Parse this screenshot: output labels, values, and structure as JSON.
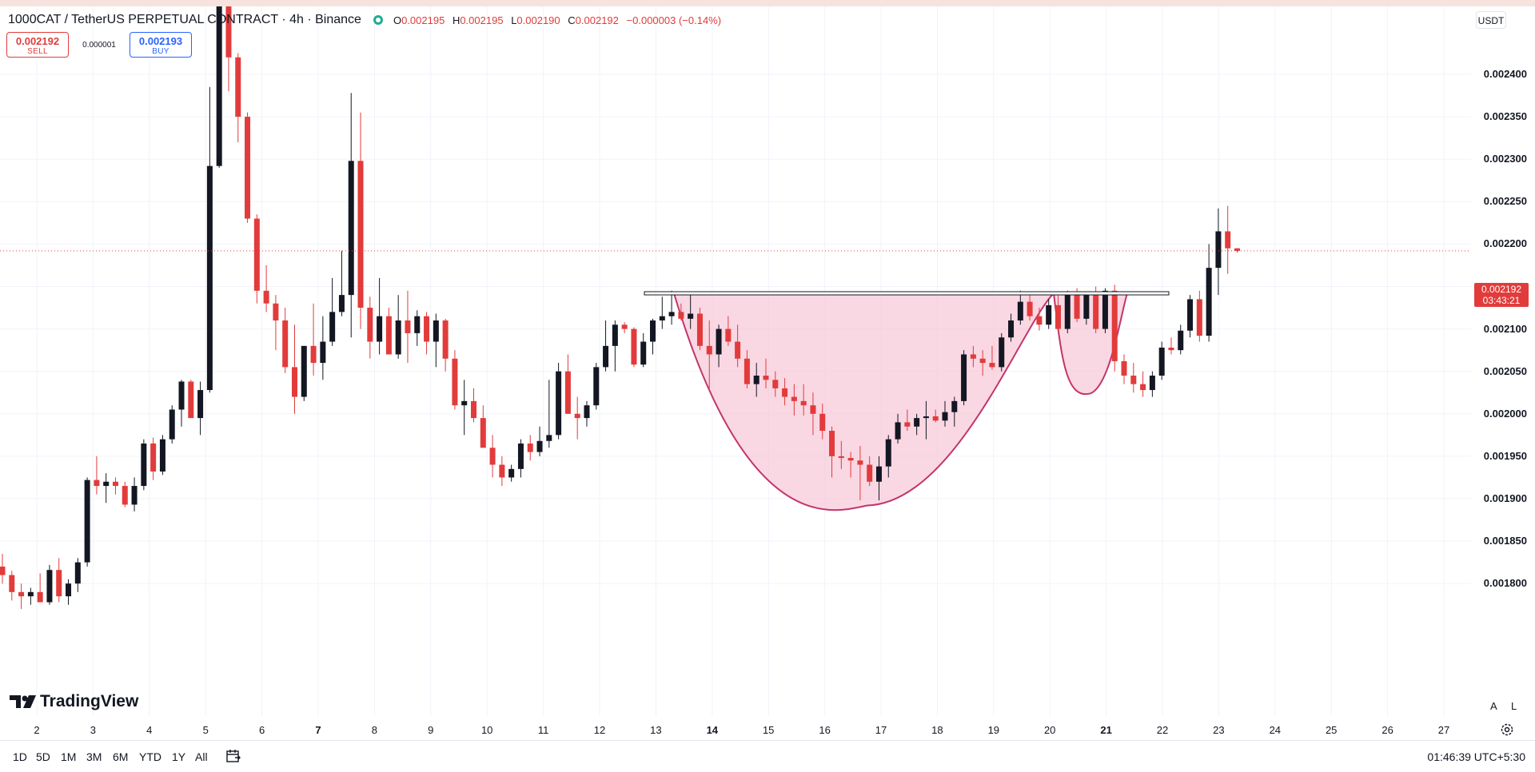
{
  "header": {
    "symbol_title": "1000CAT / TetherUS PERPETUAL CONTRACT · 4h · Binance",
    "ohlc": [
      {
        "label": "O",
        "value": "0.002195"
      },
      {
        "label": "H",
        "value": "0.002195"
      },
      {
        "label": "L",
        "value": "0.002190"
      },
      {
        "label": "C",
        "value": "0.002192"
      }
    ],
    "change": "−0.000003 (−0.14%)"
  },
  "trade": {
    "sell_price": "0.002192",
    "sell_label": "SELL",
    "spread": "0.000001",
    "buy_price": "0.002193",
    "buy_label": "BUY"
  },
  "currency": "USDT",
  "last_price_tag": {
    "price": "0.002192",
    "countdown": "03:43:21"
  },
  "colors": {
    "up": "#131722",
    "down": "#e23b3b",
    "pattern_fill": "#f7c6d7",
    "pattern_stroke": "#c2356b",
    "accent": "#2962ff"
  },
  "icons": [
    "tradingview-logo-icon",
    "calendar-icon",
    "settings-gear-icon",
    "status-dot-icon"
  ],
  "logo_text": "TradingView",
  "bottom_bar": {
    "ranges": [
      "1D",
      "5D",
      "1M",
      "3M",
      "6M",
      "YTD",
      "1Y",
      "All"
    ],
    "clock": "01:46:39 UTC+5:30"
  },
  "scale_buttons": {
    "auto": "A",
    "log": "L"
  },
  "chart_data": {
    "type": "candlestick",
    "interval": "4h",
    "price_ticks": [
      "0.002400",
      "0.002350",
      "0.002300",
      "0.002250",
      "0.002200",
      "0.002150",
      "0.002100",
      "0.002050",
      "0.002000",
      "0.001950",
      "0.001900",
      "0.001850",
      "0.001800"
    ],
    "time_ticks": [
      {
        "label": "2",
        "bold": false
      },
      {
        "label": "3",
        "bold": false
      },
      {
        "label": "4",
        "bold": false
      },
      {
        "label": "5",
        "bold": false
      },
      {
        "label": "6",
        "bold": false
      },
      {
        "label": "7",
        "bold": true
      },
      {
        "label": "8",
        "bold": false
      },
      {
        "label": "9",
        "bold": false
      },
      {
        "label": "10",
        "bold": false
      },
      {
        "label": "11",
        "bold": false
      },
      {
        "label": "12",
        "bold": false
      },
      {
        "label": "13",
        "bold": false
      },
      {
        "label": "14",
        "bold": true
      },
      {
        "label": "15",
        "bold": false
      },
      {
        "label": "16",
        "bold": false
      },
      {
        "label": "17",
        "bold": false
      },
      {
        "label": "18",
        "bold": false
      },
      {
        "label": "19",
        "bold": false
      },
      {
        "label": "20",
        "bold": false
      },
      {
        "label": "21",
        "bold": true
      },
      {
        "label": "22",
        "bold": false
      },
      {
        "label": "23",
        "bold": false
      },
      {
        "label": "24",
        "bold": false
      },
      {
        "label": "25",
        "bold": false
      },
      {
        "label": "26",
        "bold": false
      },
      {
        "label": "27",
        "bold": false
      }
    ],
    "annotations": {
      "cup_and_handle": {
        "rim_price": 0.002142,
        "cup_bottom_price": 0.001892,
        "handle_bottom_price": 0.002024
      }
    },
    "candles": [
      [
        0.00182,
        0.001835,
        0.0018,
        0.00181
      ],
      [
        0.00181,
        0.001815,
        0.00178,
        0.00179
      ],
      [
        0.00179,
        0.0018,
        0.00177,
        0.001785
      ],
      [
        0.001785,
        0.001795,
        0.001775,
        0.00179
      ],
      [
        0.00179,
        0.001812,
        0.00178,
        0.001778
      ],
      [
        0.001778,
        0.001822,
        0.001775,
        0.001816
      ],
      [
        0.001816,
        0.00183,
        0.001778,
        0.001785
      ],
      [
        0.001785,
        0.001805,
        0.001775,
        0.0018
      ],
      [
        0.0018,
        0.00183,
        0.00179,
        0.001825
      ],
      [
        0.001825,
        0.001925,
        0.00182,
        0.001922
      ],
      [
        0.001922,
        0.00195,
        0.001905,
        0.001915
      ],
      [
        0.001915,
        0.00193,
        0.001895,
        0.00192
      ],
      [
        0.00192,
        0.001925,
        0.001905,
        0.001915
      ],
      [
        0.001915,
        0.00192,
        0.00189,
        0.001893
      ],
      [
        0.001893,
        0.001925,
        0.001885,
        0.001915
      ],
      [
        0.001915,
        0.00197,
        0.00191,
        0.001965
      ],
      [
        0.001965,
        0.001972,
        0.001922,
        0.001932
      ],
      [
        0.001932,
        0.001975,
        0.001928,
        0.00197
      ],
      [
        0.00197,
        0.00201,
        0.001965,
        0.002005
      ],
      [
        0.002005,
        0.00204,
        0.001985,
        0.002038
      ],
      [
        0.002038,
        0.00204,
        0.002,
        0.001995
      ],
      [
        0.001995,
        0.002038,
        0.001975,
        0.002028
      ],
      [
        0.002028,
        0.002385,
        0.002025,
        0.002292
      ],
      [
        0.002292,
        0.00249,
        0.00229,
        0.00248
      ],
      [
        0.00248,
        0.002488,
        0.00238,
        0.00242
      ],
      [
        0.00242,
        0.002425,
        0.00232,
        0.00235
      ],
      [
        0.00235,
        0.002355,
        0.002225,
        0.00223
      ],
      [
        0.00223,
        0.002235,
        0.00213,
        0.002145
      ],
      [
        0.002145,
        0.002175,
        0.00212,
        0.00213
      ],
      [
        0.00213,
        0.00214,
        0.002075,
        0.00211
      ],
      [
        0.00211,
        0.002125,
        0.002048,
        0.002055
      ],
      [
        0.002055,
        0.002105,
        0.002,
        0.00202
      ],
      [
        0.00202,
        0.00208,
        0.002015,
        0.00208
      ],
      [
        0.00208,
        0.00213,
        0.002045,
        0.00206
      ],
      [
        0.00206,
        0.002115,
        0.00204,
        0.002085
      ],
      [
        0.002085,
        0.00216,
        0.00208,
        0.00212
      ],
      [
        0.00212,
        0.002192,
        0.002115,
        0.00214
      ],
      [
        0.00214,
        0.002378,
        0.00209,
        0.002298
      ],
      [
        0.002298,
        0.002355,
        0.0021,
        0.002125
      ],
      [
        0.002125,
        0.002138,
        0.002065,
        0.002085
      ],
      [
        0.002085,
        0.00216,
        0.00207,
        0.002115
      ],
      [
        0.002115,
        0.002125,
        0.00207,
        0.00207
      ],
      [
        0.00207,
        0.00214,
        0.002065,
        0.00211
      ],
      [
        0.00211,
        0.002145,
        0.00206,
        0.002095
      ],
      [
        0.002095,
        0.002122,
        0.00208,
        0.002115
      ],
      [
        0.002115,
        0.00212,
        0.00207,
        0.002085
      ],
      [
        0.002085,
        0.002118,
        0.002055,
        0.00211
      ],
      [
        0.00211,
        0.002112,
        0.00205,
        0.002065
      ],
      [
        0.002065,
        0.002075,
        0.002005,
        0.00201
      ],
      [
        0.00201,
        0.00204,
        0.001975,
        0.002015
      ],
      [
        0.002015,
        0.00203,
        0.00199,
        0.001995
      ],
      [
        0.001995,
        0.00201,
        0.00196,
        0.00196
      ],
      [
        0.00196,
        0.001975,
        0.001925,
        0.00194
      ],
      [
        0.00194,
        0.00195,
        0.001915,
        0.001925
      ],
      [
        0.001925,
        0.00194,
        0.00192,
        0.001935
      ],
      [
        0.001935,
        0.00197,
        0.001925,
        0.001965
      ],
      [
        0.001965,
        0.001975,
        0.001945,
        0.001955
      ],
      [
        0.001955,
        0.001985,
        0.00195,
        0.001968
      ],
      [
        0.001968,
        0.00204,
        0.00196,
        0.001975
      ],
      [
        0.001975,
        0.00206,
        0.00197,
        0.00205
      ],
      [
        0.00205,
        0.00207,
        0.002,
        0.002
      ],
      [
        0.002,
        0.00202,
        0.00197,
        0.001995
      ],
      [
        0.001995,
        0.002015,
        0.001985,
        0.00201
      ],
      [
        0.00201,
        0.00206,
        0.002005,
        0.002055
      ],
      [
        0.002055,
        0.00211,
        0.00205,
        0.00208
      ],
      [
        0.00208,
        0.00211,
        0.00205,
        0.002105
      ],
      [
        0.002105,
        0.002108,
        0.002095,
        0.0021
      ],
      [
        0.0021,
        0.002102,
        0.002055,
        0.002058
      ],
      [
        0.002058,
        0.002095,
        0.002055,
        0.002085
      ],
      [
        0.002085,
        0.002112,
        0.00207,
        0.00211
      ],
      [
        0.00211,
        0.002138,
        0.0021,
        0.002115
      ],
      [
        0.002115,
        0.002145,
        0.002105,
        0.00212
      ],
      [
        0.00212,
        0.00213,
        0.00211,
        0.002112
      ],
      [
        0.002112,
        0.00214,
        0.0021,
        0.002118
      ],
      [
        0.002118,
        0.002125,
        0.002075,
        0.00208
      ],
      [
        0.00208,
        0.00211,
        0.00203,
        0.00207
      ],
      [
        0.00207,
        0.002105,
        0.002055,
        0.0021
      ],
      [
        0.0021,
        0.002115,
        0.00208,
        0.002085
      ],
      [
        0.002085,
        0.002105,
        0.002055,
        0.002065
      ],
      [
        0.002065,
        0.002075,
        0.00203,
        0.002035
      ],
      [
        0.002035,
        0.00206,
        0.00202,
        0.002045
      ],
      [
        0.002045,
        0.002065,
        0.00203,
        0.00204
      ],
      [
        0.00204,
        0.00205,
        0.00202,
        0.00203
      ],
      [
        0.00203,
        0.002042,
        0.00201,
        0.00202
      ],
      [
        0.00202,
        0.002035,
        0.001998,
        0.002015
      ],
      [
        0.002015,
        0.002035,
        0.001998,
        0.00201
      ],
      [
        0.00201,
        0.002025,
        0.001975,
        0.002
      ],
      [
        0.002,
        0.002012,
        0.00197,
        0.00198
      ],
      [
        0.00198,
        0.001985,
        0.001925,
        0.00195
      ],
      [
        0.00195,
        0.001968,
        0.001935,
        0.001948
      ],
      [
        0.001948,
        0.001955,
        0.001925,
        0.001945
      ],
      [
        0.001945,
        0.001962,
        0.001898,
        0.00194
      ],
      [
        0.00194,
        0.00195,
        0.001915,
        0.00192
      ],
      [
        0.00192,
        0.00195,
        0.001898,
        0.001938
      ],
      [
        0.001938,
        0.001975,
        0.001925,
        0.00197
      ],
      [
        0.00197,
        0.002,
        0.001965,
        0.00199
      ],
      [
        0.00199,
        0.002005,
        0.00198,
        0.001985
      ],
      [
        0.001985,
        0.002,
        0.001975,
        0.001995
      ],
      [
        0.001995,
        0.002015,
        0.00197,
        0.001997
      ],
      [
        0.001997,
        0.002005,
        0.00199,
        0.001992
      ],
      [
        0.001992,
        0.002015,
        0.001985,
        0.002002
      ],
      [
        0.002002,
        0.00202,
        0.001985,
        0.002015
      ],
      [
        0.002015,
        0.002075,
        0.00201,
        0.00207
      ],
      [
        0.00207,
        0.00208,
        0.002055,
        0.002065
      ],
      [
        0.002065,
        0.002075,
        0.002045,
        0.00206
      ],
      [
        0.00206,
        0.00208,
        0.002052,
        0.002055
      ],
      [
        0.002055,
        0.002095,
        0.00205,
        0.00209
      ],
      [
        0.00209,
        0.002118,
        0.002085,
        0.00211
      ],
      [
        0.00211,
        0.002145,
        0.002105,
        0.002132
      ],
      [
        0.002132,
        0.002142,
        0.00211,
        0.002115
      ],
      [
        0.002115,
        0.002125,
        0.002098,
        0.002105
      ],
      [
        0.002105,
        0.002135,
        0.0021,
        0.002128
      ],
      [
        0.002128,
        0.00214,
        0.002098,
        0.0021
      ],
      [
        0.0021,
        0.002145,
        0.002095,
        0.002142
      ],
      [
        0.002142,
        0.002148,
        0.002108,
        0.002112
      ],
      [
        0.002112,
        0.00214,
        0.002105,
        0.00214
      ],
      [
        0.00214,
        0.00215,
        0.002095,
        0.0021
      ],
      [
        0.0021,
        0.002148,
        0.002095,
        0.002145
      ],
      [
        0.002145,
        0.002152,
        0.00205,
        0.002062
      ],
      [
        0.002062,
        0.00207,
        0.002035,
        0.002045
      ],
      [
        0.002045,
        0.00206,
        0.002025,
        0.002035
      ],
      [
        0.002035,
        0.00205,
        0.00202,
        0.002028
      ],
      [
        0.002028,
        0.00205,
        0.00202,
        0.002045
      ],
      [
        0.002045,
        0.002085,
        0.00204,
        0.002078
      ],
      [
        0.002078,
        0.00209,
        0.00207,
        0.002075
      ],
      [
        0.002075,
        0.002105,
        0.00207,
        0.002098
      ],
      [
        0.002098,
        0.00214,
        0.00209,
        0.002135
      ],
      [
        0.002135,
        0.002145,
        0.002085,
        0.002092
      ],
      [
        0.002092,
        0.0022,
        0.002085,
        0.002172
      ],
      [
        0.002172,
        0.002242,
        0.00214,
        0.002215
      ],
      [
        0.002215,
        0.002245,
        0.002165,
        0.002195
      ],
      [
        0.002195,
        0.002195,
        0.00219,
        0.002192
      ]
    ]
  }
}
